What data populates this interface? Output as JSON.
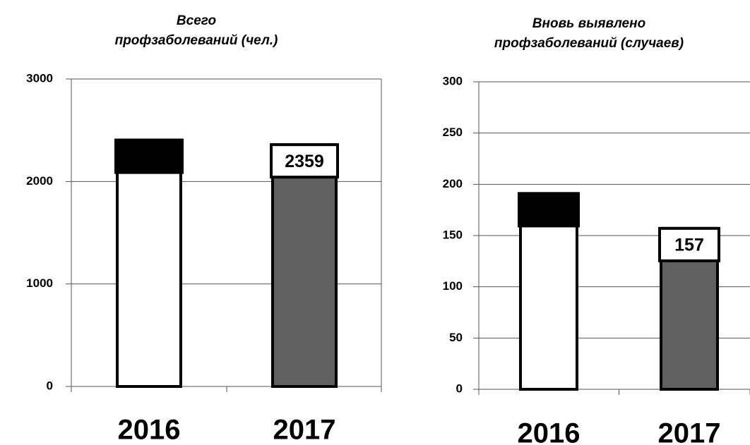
{
  "chart_data": [
    {
      "type": "bar",
      "title": [
        "Всего",
        "профзаболеваний (чел.)"
      ],
      "categories": [
        "2016",
        "2017"
      ],
      "values": [
        2404,
        2359
      ],
      "colors": [
        "#ffffff",
        "#606060"
      ],
      "ylim": [
        0,
        3000
      ],
      "yticks": [
        0,
        1000,
        2000,
        3000
      ],
      "grid": true
    },
    {
      "type": "bar",
      "title": [
        "Вновь выявлено",
        "профзаболеваний (случаев)"
      ],
      "categories": [
        "2016",
        "2017"
      ],
      "values": [
        191,
        157
      ],
      "colors": [
        "#ffffff",
        "#606060"
      ],
      "ylim": [
        0,
        300
      ],
      "yticks": [
        0,
        50,
        100,
        150,
        200,
        250,
        300
      ],
      "grid": true
    }
  ]
}
